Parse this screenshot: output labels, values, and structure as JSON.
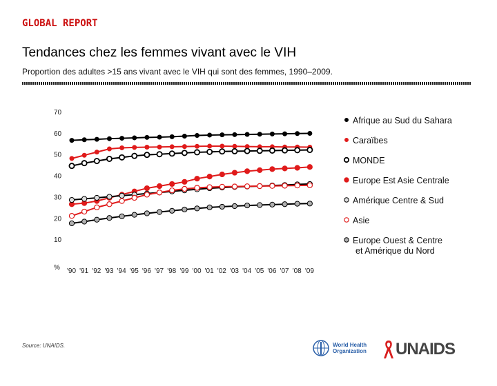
{
  "header": {
    "brand": "GLOBAL REPORT",
    "title": "Tendances chez les femmes vivant avec le VIH",
    "subtitle": "Proportion des adultes >15 ans vivant avec le VIH qui sont des femmes, 1990–2009."
  },
  "footer": {
    "source": "Source: UNAIDS.",
    "who_line1": "World Health",
    "who_line2": "Organization",
    "unaids": "UNAIDS"
  },
  "colors": {
    "red": "#e01b1b",
    "black": "#000000",
    "gray": "#b0b0b0",
    "lightgray": "#dddddd"
  },
  "chart_data": {
    "type": "line",
    "title": "Tendances chez les femmes vivant avec le VIH",
    "ylabel": "%",
    "ylim": [
      0,
      70
    ],
    "yticks": [
      "70",
      "60",
      "50",
      "40",
      "30",
      "20",
      "10",
      "%"
    ],
    "categories": [
      "'90",
      "'91",
      "'92",
      "'93",
      "'94",
      "'95",
      "'96",
      "'97",
      "'98",
      "'99",
      "'00",
      "'01",
      "'02",
      "'03",
      "'04",
      "'05",
      "'06",
      "'07",
      "'08",
      "'09"
    ],
    "series": [
      {
        "name": "Afrique au Sud du Sahara",
        "color": "#000000",
        "marker": "dot",
        "values": [
          56.5,
          56.8,
          57.0,
          57.3,
          57.5,
          57.7,
          57.9,
          58.0,
          58.2,
          58.5,
          58.8,
          59.0,
          59.1,
          59.2,
          59.3,
          59.4,
          59.5,
          59.6,
          59.7,
          59.8
        ]
      },
      {
        "name": "Caraïbes",
        "color": "#e01b1b",
        "marker": "dot",
        "values": [
          48.0,
          49.5,
          51.0,
          52.5,
          53.0,
          53.2,
          53.3,
          53.4,
          53.5,
          53.6,
          53.7,
          53.8,
          53.8,
          53.7,
          53.6,
          53.5,
          53.5,
          53.4,
          53.4,
          53.3
        ]
      },
      {
        "name": "MONDE",
        "color": "#000000",
        "marker": "ring-black",
        "values": [
          44.5,
          45.8,
          46.8,
          47.8,
          48.5,
          49.2,
          49.7,
          50.0,
          50.3,
          50.6,
          50.9,
          51.1,
          51.3,
          51.4,
          51.5,
          51.6,
          51.7,
          51.8,
          51.9,
          52.0
        ]
      },
      {
        "name": "Europe Est Asie Centrale",
        "color": "#e01b1b",
        "marker": "ring-red",
        "values": [
          26.5,
          27.0,
          28.0,
          29.5,
          31.0,
          32.5,
          34.0,
          35.0,
          36.0,
          37.0,
          38.5,
          39.5,
          40.5,
          41.3,
          42.0,
          42.5,
          43.0,
          43.3,
          43.6,
          44.0
        ]
      },
      {
        "name": "Amérique Centre & Sud",
        "color": "#000000",
        "marker": "ring-gray",
        "values": [
          28.5,
          29.0,
          29.5,
          30.0,
          30.5,
          31.0,
          31.5,
          32.0,
          32.5,
          33.0,
          33.5,
          34.0,
          34.3,
          34.6,
          34.8,
          35.0,
          35.3,
          35.5,
          35.8,
          36.0
        ]
      },
      {
        "name": "Asie",
        "color": "#e01b1b",
        "marker": "ring-white",
        "values": [
          21.0,
          23.0,
          25.0,
          26.5,
          28.0,
          29.5,
          31.0,
          32.0,
          33.0,
          33.7,
          34.2,
          34.5,
          34.7,
          34.8,
          34.9,
          35.0,
          35.1,
          35.2,
          35.3,
          35.4
        ]
      },
      {
        "name": "Europe Ouest & Centre et Amérique du Nord",
        "color": "#000000",
        "marker": "ring-darkgray",
        "values": [
          17.5,
          18.3,
          19.2,
          20.0,
          20.8,
          21.5,
          22.2,
          22.8,
          23.4,
          24.0,
          24.5,
          25.0,
          25.3,
          25.6,
          25.9,
          26.1,
          26.3,
          26.5,
          26.7,
          26.8
        ]
      }
    ],
    "legend": [
      {
        "marker": "dot-black",
        "label": "Afrique au Sud du Sahara"
      },
      {
        "marker": "dot-red",
        "label": "Caraïbes"
      },
      {
        "marker": "ring-black",
        "label": "MONDE"
      },
      {
        "marker": "ring-red",
        "label": "Europe Est Asie Centrale"
      },
      {
        "marker": "ring-gray",
        "label": "Amérique Centre & Sud"
      },
      {
        "marker": "ring-white-red",
        "label": "Asie"
      },
      {
        "marker": "ring-darkgray",
        "label": "Europe Ouest & Centre",
        "label2": "et Amérique du Nord"
      }
    ],
    "legend_position": "right"
  }
}
